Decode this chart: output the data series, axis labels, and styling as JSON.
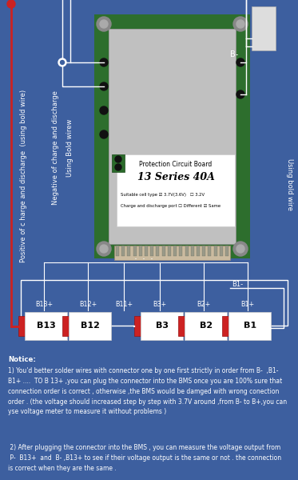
{
  "bg_color": "#3d5f9f",
  "red_color": "#cc2222",
  "white": "#ffffff",
  "black": "#000000",
  "green_pcb": "#2d6e2d",
  "silver_pcb": "#b0b0b0",
  "notice_text_1": "Notice:",
  "notice_text_2": "1) You'd better solder wires with connector one by one first strictly in order from B-  ,B1-\nB1+ ....  TO B 13+ ,you can plug the connector into the BMS once you are 100% sure that\nconnection order is correct , otherwise ,the BMS would be damged with wrong conection\norder . (the voltage should increased step by step with 3.7V around ,from B- to B+,you can\nyse voltage meter to measure it without problems )",
  "notice_text_3": " 2) After plugging the connector into the BMS , you can measure the voltage output from\n P-  B13+  and  B- ,B13+ to see if their voltage output is the same or not . the connection\nis correct when they are the same .",
  "label_using_bold": "Using Bold wirew",
  "label_negative": "Negative of charge and discharge",
  "label_positive": "Positive of c harge and discharge  (using bold wire)",
  "label_right": "Using bold wire",
  "label_b_minus": "B-",
  "label_b1_minus": "B1-",
  "pcb_title": "Protection Circuit Board",
  "pcb_series": "13 Series 40A",
  "pcb_cell": "Suitable cell type ☑ 3.7V(3.6V)   ☐ 3.2V",
  "pcb_charge": "Charge and discharge port ☐ Different ☑ Same",
  "boxes": [
    "B13",
    "B12",
    "B3",
    "B2",
    "B1"
  ],
  "box_labels_plus": [
    "B13+",
    "B12+",
    "B11+",
    "B3+",
    "B2+",
    "B1+"
  ]
}
